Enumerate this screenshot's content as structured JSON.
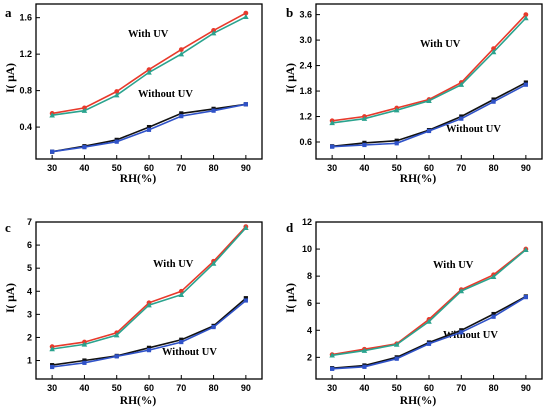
{
  "colors": {
    "red": "#e8392b",
    "teal": "#2aa38e",
    "black": "#111111",
    "blue": "#2f52c8"
  },
  "chart_data": [
    {
      "type": "line",
      "panel_label": "a",
      "x": [
        30,
        40,
        50,
        60,
        70,
        80,
        90
      ],
      "xlabel": "RH(%)",
      "ylabel": "I( μA)",
      "xlim": [
        25,
        95
      ],
      "ylim": [
        0.05,
        1.75
      ],
      "yticks": [
        0.4,
        0.8,
        1.2,
        1.6
      ],
      "ytick_labels": [
        "0.4",
        "0.8",
        "1.2",
        "1.6"
      ],
      "series": [
        {
          "color": "red",
          "marker": "dot",
          "values": [
            0.55,
            0.61,
            0.79,
            1.03,
            1.25,
            1.46,
            1.65
          ]
        },
        {
          "color": "teal",
          "marker": "tri",
          "values": [
            0.53,
            0.58,
            0.75,
            1.0,
            1.2,
            1.43,
            1.61
          ]
        },
        {
          "color": "black",
          "marker": "square",
          "values": [
            0.13,
            0.19,
            0.26,
            0.4,
            0.55,
            0.6,
            0.65
          ]
        },
        {
          "color": "blue",
          "marker": "square",
          "values": [
            0.13,
            0.18,
            0.24,
            0.37,
            0.52,
            0.58,
            0.65
          ]
        }
      ],
      "annotations": [
        "With UV",
        "Without UV"
      ]
    },
    {
      "type": "line",
      "panel_label": "b",
      "x": [
        30,
        40,
        50,
        60,
        70,
        80,
        90
      ],
      "xlabel": "RH(%)",
      "ylabel": "I( μA)",
      "xlim": [
        25,
        95
      ],
      "ylim": [
        0.2,
        3.85
      ],
      "yticks": [
        0.6,
        1.2,
        1.8,
        2.4,
        3.0,
        3.6
      ],
      "ytick_labels": [
        "0.6",
        "1.2",
        "1.8",
        "2.4",
        "3.0",
        "3.6"
      ],
      "series": [
        {
          "color": "red",
          "marker": "dot",
          "values": [
            1.1,
            1.2,
            1.4,
            1.6,
            2.0,
            2.8,
            3.6
          ]
        },
        {
          "color": "teal",
          "marker": "tri",
          "values": [
            1.05,
            1.15,
            1.35,
            1.57,
            1.95,
            2.72,
            3.52
          ]
        },
        {
          "color": "black",
          "marker": "square",
          "values": [
            0.5,
            0.58,
            0.63,
            0.88,
            1.2,
            1.6,
            2.0
          ]
        },
        {
          "color": "blue",
          "marker": "square",
          "values": [
            0.49,
            0.53,
            0.57,
            0.86,
            1.15,
            1.55,
            1.95
          ]
        }
      ],
      "annotations": [
        "With UV",
        "Without UV"
      ]
    },
    {
      "type": "line",
      "panel_label": "c",
      "x": [
        30,
        40,
        50,
        60,
        70,
        80,
        90
      ],
      "xlabel": "RH(%)",
      "ylabel": "I( μA)",
      "xlim": [
        25,
        95
      ],
      "ylim": [
        0.2,
        7.0
      ],
      "yticks": [
        1,
        2,
        3,
        4,
        5,
        6,
        7
      ],
      "ytick_labels": [
        "1",
        "2",
        "3",
        "4",
        "5",
        "6",
        "7"
      ],
      "series": [
        {
          "color": "red",
          "marker": "dot",
          "values": [
            1.6,
            1.8,
            2.2,
            3.5,
            4.0,
            5.3,
            6.8
          ]
        },
        {
          "color": "teal",
          "marker": "tri",
          "values": [
            1.5,
            1.7,
            2.1,
            3.4,
            3.85,
            5.2,
            6.75
          ]
        },
        {
          "color": "black",
          "marker": "square",
          "values": [
            0.8,
            1.0,
            1.2,
            1.55,
            1.9,
            2.5,
            3.7
          ]
        },
        {
          "color": "blue",
          "marker": "square",
          "values": [
            0.72,
            0.9,
            1.18,
            1.45,
            1.8,
            2.45,
            3.6
          ]
        }
      ],
      "annotations": [
        "With UV",
        "Without UV"
      ]
    },
    {
      "type": "line",
      "panel_label": "d",
      "x": [
        30,
        40,
        50,
        60,
        70,
        80,
        90
      ],
      "xlabel": "RH(%)",
      "ylabel": "I( μA)",
      "xlim": [
        25,
        95
      ],
      "ylim": [
        0.4,
        12.0
      ],
      "yticks": [
        2,
        4,
        6,
        8,
        10,
        12
      ],
      "ytick_labels": [
        "2",
        "4",
        "6",
        "8",
        "10",
        "12"
      ],
      "series": [
        {
          "color": "red",
          "marker": "dot",
          "values": [
            2.2,
            2.6,
            3.0,
            4.8,
            7.0,
            8.1,
            10.0
          ]
        },
        {
          "color": "teal",
          "marker": "tri",
          "values": [
            2.15,
            2.5,
            2.95,
            4.65,
            6.9,
            7.95,
            9.95
          ]
        },
        {
          "color": "black",
          "marker": "square",
          "values": [
            1.2,
            1.4,
            2.0,
            3.1,
            4.0,
            5.2,
            6.5
          ]
        },
        {
          "color": "blue",
          "marker": "square",
          "values": [
            1.15,
            1.3,
            1.9,
            3.0,
            3.85,
            5.0,
            6.45
          ]
        }
      ],
      "annotations": [
        "With UV",
        "Without UV"
      ]
    }
  ]
}
